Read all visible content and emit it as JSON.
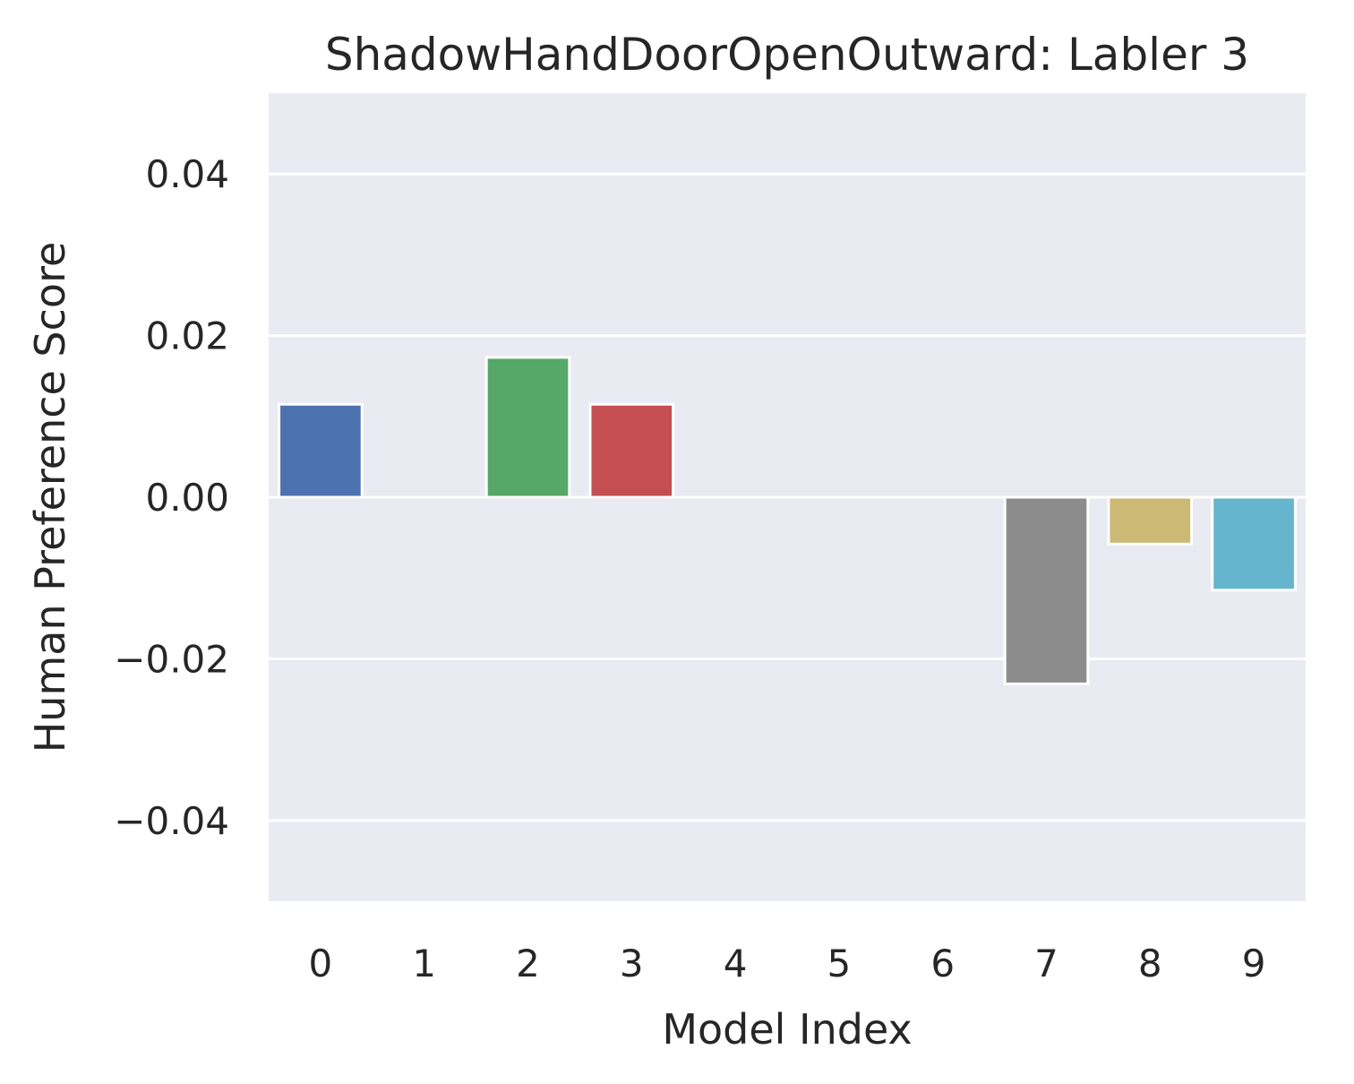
{
  "chart_data": {
    "type": "bar",
    "title": "ShadowHandDoorOpenOutward: Labler 3",
    "xlabel": "Model Index",
    "ylabel": "Human Preference Score",
    "categories": [
      "0",
      "1",
      "2",
      "3",
      "4",
      "5",
      "6",
      "7",
      "8",
      "9"
    ],
    "values": [
      0.0115,
      0.0,
      0.0173,
      0.0115,
      0.0,
      0.0,
      0.0,
      -0.0231,
      -0.0058,
      -0.0115
    ],
    "colors": [
      "#4c72b0",
      "#dd8452",
      "#55a868",
      "#c44e52",
      "#8172b3",
      "#937860",
      "#da8bc3",
      "#8c8c8c",
      "#ccb974",
      "#64b5cd"
    ],
    "ylim": [
      -0.05,
      0.05
    ],
    "yticks": [
      -0.04,
      -0.02,
      0.0,
      0.02,
      0.04
    ],
    "ytick_labels": [
      "−0.04",
      "−0.02",
      "0.00",
      "0.02",
      "0.04"
    ],
    "grid": true,
    "background": "#eaeaf2"
  }
}
